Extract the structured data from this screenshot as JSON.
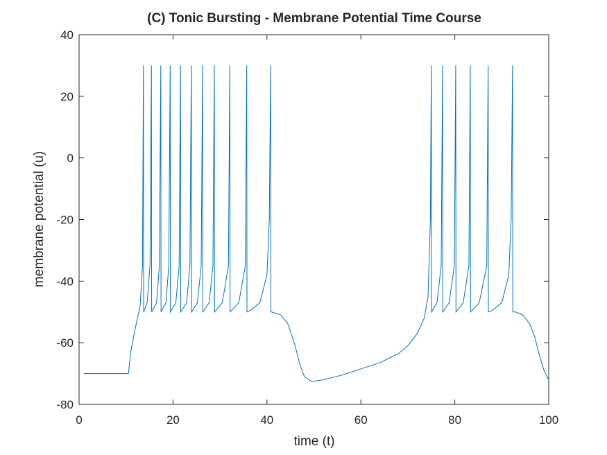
{
  "chart_data": {
    "type": "line",
    "title": "(C) Tonic Bursting - Membrane Potential Time Course",
    "xlabel": "time (t)",
    "ylabel": "membrane potential (u)",
    "xlim": [
      0,
      100
    ],
    "ylim": [
      -80,
      40
    ],
    "xticks": [
      0,
      20,
      40,
      60,
      80,
      100
    ],
    "yticks": [
      -80,
      -60,
      -40,
      -20,
      0,
      20,
      40
    ],
    "series": [
      {
        "color": "#0072bd",
        "x": [
          1,
          10.5,
          11,
          12,
          13,
          13.5,
          13.7,
          13.75,
          14.5,
          15.1,
          15.4,
          15.45,
          16.5,
          17.1,
          17.4,
          17.45,
          18.5,
          19.1,
          19.4,
          19.45,
          20.6,
          21.3,
          21.6,
          21.65,
          22.9,
          23.6,
          23.9,
          23.95,
          25.2,
          26.0,
          26.3,
          26.35,
          27.7,
          28.5,
          28.8,
          28.85,
          30.5,
          31.8,
          32.1,
          32.15,
          34.0,
          35.4,
          35.7,
          35.75,
          36.5,
          38.5,
          40.0,
          40.5,
          40.8,
          40.85,
          41.0,
          43,
          44.5,
          46,
          47,
          48,
          49.5,
          52,
          56,
          60,
          64,
          68,
          70,
          72,
          73.5,
          74.3,
          74.8,
          75.0,
          75.05,
          76.2,
          77.1,
          77.4,
          77.45,
          78.8,
          79.9,
          80.2,
          80.25,
          81.8,
          83.0,
          83.3,
          83.35,
          85.2,
          86.8,
          87.1,
          87.15,
          88.0,
          90,
          91.5,
          92.0,
          92.3,
          92.35,
          93,
          94.5,
          96,
          97,
          98,
          99,
          100
        ],
        "values": [
          -70,
          -70,
          -63,
          -55,
          -48,
          -35,
          30,
          -50,
          -47,
          -35,
          30,
          -50,
          -47,
          -35,
          30,
          -50,
          -47,
          -35,
          30,
          -50,
          -47,
          -35,
          30,
          -50,
          -47,
          -35,
          30,
          -50,
          -47,
          -35,
          30,
          -50,
          -47,
          -35,
          30,
          -50,
          -47,
          -35,
          30,
          -50,
          -47,
          -35,
          30,
          -50,
          -49.5,
          -47,
          -38,
          -20,
          30,
          -50,
          -50,
          -51,
          -54,
          -61,
          -67,
          -71,
          -72.6,
          -72,
          -70.5,
          -68.5,
          -66.5,
          -63.5,
          -61,
          -57,
          -52,
          -45,
          -20,
          30,
          -50,
          -47,
          -35,
          30,
          -50,
          -47,
          -35,
          30,
          -50,
          -47,
          -35,
          30,
          -50,
          -47,
          -35,
          30,
          -50,
          -49.5,
          -47,
          -38,
          -20,
          30,
          -50,
          -50,
          -51,
          -54,
          -58,
          -64,
          -69,
          -72
        ]
      }
    ]
  }
}
